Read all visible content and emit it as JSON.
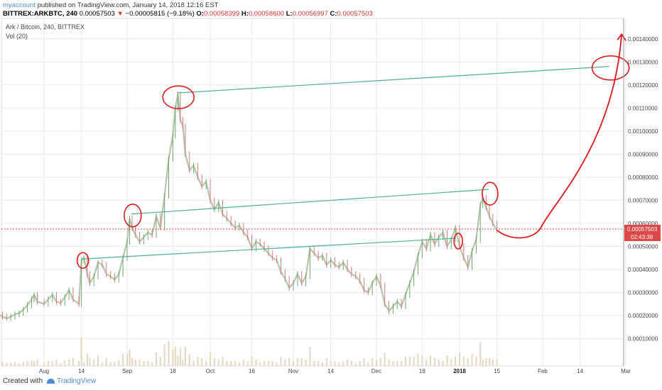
{
  "header": {
    "user": "myaccount",
    "published": " published on TradingView.com, January 14, 2018 12:16 EST",
    "symbol_line": "BITTREX:ARKBTC, 240",
    "price": "0.00057503",
    "down_arrow": "▼",
    "change": "−0.00005815 (−9.18%)",
    "open_label": "O:",
    "open": "0.00058399",
    "high_label": "H:",
    "high": "0.00058600",
    "low_label": "L:",
    "low": "0.00056997",
    "close_label": "C:",
    "close": "0.00057503"
  },
  "overlay": {
    "title": "Ark / Bitcoin, 240, BITTREX",
    "volume": "Vol (20)"
  },
  "price_tag": {
    "value": "0.00057503",
    "countdown": "02:43:38",
    "color": "#e04848"
  },
  "footer": {
    "created_with": "Created with",
    "brand": "TradingView"
  },
  "chart_data": {
    "type": "line",
    "title": "Ark / Bitcoin, 240, BITTREX",
    "ylim": [
      0.0,
      0.00147
    ],
    "y_ticks": [
      "0.00010000",
      "0.00020000",
      "0.00030000",
      "0.00040000",
      "0.00050000",
      "0.00060000",
      "0.00070000",
      "0.00080000",
      "0.00090000",
      "0.00100000",
      "0.00110000",
      "0.00120000",
      "0.00130000",
      "0.00140000"
    ],
    "x_ticks": [
      {
        "label": "Aug",
        "pos": 0.0
      },
      {
        "label": "14",
        "pos": 0.45
      },
      {
        "label": "Sep",
        "pos": 1.0
      },
      {
        "label": "18",
        "pos": 1.55
      },
      {
        "label": "Oct",
        "pos": 2.0
      },
      {
        "label": "16",
        "pos": 2.5
      },
      {
        "label": "Nov",
        "pos": 3.0
      },
      {
        "label": "14",
        "pos": 3.45
      },
      {
        "label": "Dec",
        "pos": 4.0
      },
      {
        "label": "18",
        "pos": 4.55
      },
      {
        "label": "2018",
        "pos": 5.0,
        "bold": true
      },
      {
        "label": "15",
        "pos": 5.45
      },
      {
        "label": "Feb",
        "pos": 6.0
      },
      {
        "label": "14",
        "pos": 6.45
      },
      {
        "label": "Mar",
        "pos": 7.0
      }
    ],
    "x_range": [
      -0.75,
      7.15
    ],
    "price_series": [
      [
        -0.75,
        0.000215
      ],
      [
        -0.7,
        0.000212
      ],
      [
        -0.65,
        0.00021
      ],
      [
        -0.6,
        0.000208
      ],
      [
        -0.55,
        0.000205
      ],
      [
        -0.5,
        0.000195
      ],
      [
        -0.45,
        0.000188
      ],
      [
        -0.4,
        0.000195
      ],
      [
        -0.35,
        0.000205
      ],
      [
        -0.3,
        0.00021
      ],
      [
        -0.25,
        0.000225
      ],
      [
        -0.2,
        0.000245
      ],
      [
        -0.15,
        0.00027
      ],
      [
        -0.12,
        0.00029
      ],
      [
        -0.08,
        0.00026
      ],
      [
        0.0,
        0.00025
      ],
      [
        0.05,
        0.00027
      ],
      [
        0.1,
        0.00029
      ],
      [
        0.15,
        0.00026
      ],
      [
        0.2,
        0.000255
      ],
      [
        0.25,
        0.00028
      ],
      [
        0.3,
        0.00031
      ],
      [
        0.35,
        0.00027
      ],
      [
        0.42,
        0.00025
      ],
      [
        0.45,
        0.00044
      ],
      [
        0.48,
        0.00045
      ],
      [
        0.52,
        0.00038
      ],
      [
        0.55,
        0.00034
      ],
      [
        0.6,
        0.00037
      ],
      [
        0.65,
        0.00043
      ],
      [
        0.7,
        0.00042
      ],
      [
        0.75,
        0.00038
      ],
      [
        0.8,
        0.00037
      ],
      [
        0.85,
        0.000355
      ],
      [
        0.9,
        0.00038
      ],
      [
        0.95,
        0.00045
      ],
      [
        1.0,
        0.00052
      ],
      [
        1.03,
        0.00062
      ],
      [
        1.06,
        0.00058
      ],
      [
        1.1,
        0.00055
      ],
      [
        1.15,
        0.00052
      ],
      [
        1.2,
        0.00054
      ],
      [
        1.25,
        0.00056
      ],
      [
        1.3,
        0.00055
      ],
      [
        1.35,
        0.00063
      ],
      [
        1.4,
        0.00058
      ],
      [
        1.45,
        0.00072
      ],
      [
        1.5,
        0.00088
      ],
      [
        1.55,
        0.00098
      ],
      [
        1.58,
        0.0011
      ],
      [
        1.61,
        0.00116
      ],
      [
        1.64,
        0.00105
      ],
      [
        1.67,
        0.00102
      ],
      [
        1.7,
        0.0009
      ],
      [
        1.75,
        0.00083
      ],
      [
        1.8,
        0.00085
      ],
      [
        1.85,
        0.0008
      ],
      [
        1.9,
        0.00076
      ],
      [
        1.95,
        0.00078
      ],
      [
        2.0,
        0.0007
      ],
      [
        2.05,
        0.00066
      ],
      [
        2.1,
        0.00069
      ],
      [
        2.15,
        0.00064
      ],
      [
        2.2,
        0.00062
      ],
      [
        2.25,
        0.0006
      ],
      [
        2.3,
        0.00058
      ],
      [
        2.35,
        0.00059
      ],
      [
        2.4,
        0.00056
      ],
      [
        2.45,
        0.00054
      ],
      [
        2.5,
        0.00049
      ],
      [
        2.55,
        0.00052
      ],
      [
        2.6,
        0.00051
      ],
      [
        2.65,
        0.00049
      ],
      [
        2.7,
        0.00047
      ],
      [
        2.75,
        0.00045
      ],
      [
        2.8,
        0.00044
      ],
      [
        2.85,
        0.00039
      ],
      [
        2.9,
        0.00036
      ],
      [
        2.95,
        0.00032
      ],
      [
        3.0,
        0.00034
      ],
      [
        3.05,
        0.00038
      ],
      [
        3.1,
        0.00034
      ],
      [
        3.15,
        0.00037
      ],
      [
        3.2,
        0.00049
      ],
      [
        3.25,
        0.00047
      ],
      [
        3.3,
        0.00045
      ],
      [
        3.35,
        0.00046
      ],
      [
        3.4,
        0.00042
      ],
      [
        3.45,
        0.00044
      ],
      [
        3.5,
        0.00042
      ],
      [
        3.55,
        0.00041
      ],
      [
        3.6,
        0.00043
      ],
      [
        3.65,
        0.0004
      ],
      [
        3.7,
        0.00038
      ],
      [
        3.75,
        0.00037
      ],
      [
        3.8,
        0.00035
      ],
      [
        3.85,
        0.00031
      ],
      [
        3.9,
        0.0003
      ],
      [
        3.95,
        0.00034
      ],
      [
        4.0,
        0.00037
      ],
      [
        4.05,
        0.00033
      ],
      [
        4.1,
        0.00025
      ],
      [
        4.15,
        0.00022
      ],
      [
        4.2,
        0.00024
      ],
      [
        4.25,
        0.00026
      ],
      [
        4.3,
        0.00024
      ],
      [
        4.35,
        0.00029
      ],
      [
        4.4,
        0.00034
      ],
      [
        4.45,
        0.00039
      ],
      [
        4.5,
        0.00046
      ],
      [
        4.55,
        0.00052
      ],
      [
        4.6,
        0.00049
      ],
      [
        4.65,
        0.00055
      ],
      [
        4.7,
        0.00051
      ],
      [
        4.75,
        0.00054
      ],
      [
        4.8,
        0.00056
      ],
      [
        4.85,
        0.0005
      ],
      [
        4.9,
        0.00053
      ],
      [
        4.95,
        0.00058
      ],
      [
        5.0,
        0.0005
      ],
      [
        5.05,
        0.00045
      ],
      [
        5.1,
        0.00041
      ],
      [
        5.15,
        0.00048
      ],
      [
        5.2,
        0.00053
      ],
      [
        5.25,
        0.00068
      ],
      [
        5.28,
        0.00071
      ],
      [
        5.32,
        0.00067
      ],
      [
        5.36,
        0.00063
      ],
      [
        5.4,
        0.0006
      ],
      [
        5.45,
        0.00057
      ]
    ],
    "price_color": "#a8b8a0",
    "trendlines": [
      {
        "points": [
          [
            1.6,
            0.001165
          ],
          [
            6.8,
            0.00128
          ]
        ]
      },
      {
        "points": [
          [
            1.05,
            0.00064
          ],
          [
            5.35,
            0.000747
          ]
        ]
      },
      {
        "points": [
          [
            0.45,
            0.000445
          ],
          [
            4.95,
            0.000535
          ]
        ]
      }
    ],
    "trendline_color": "#4caf9a",
    "last_price": 0.00057503,
    "projection_color": "#e01818"
  }
}
